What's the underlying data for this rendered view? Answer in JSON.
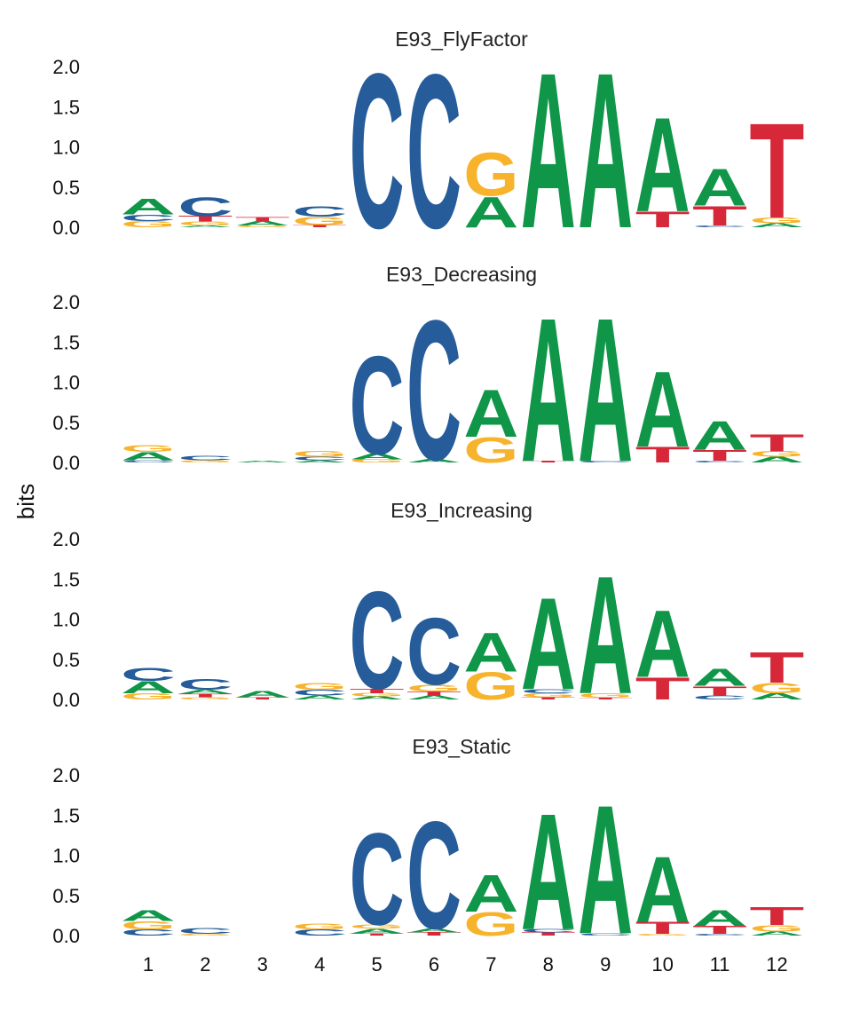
{
  "colors": {
    "A": "#109648",
    "C": "#255C99",
    "G": "#F7B32B",
    "T": "#D62839"
  },
  "chart_data": {
    "type": "sequence-logo",
    "ylabel": "bits",
    "ylim": [
      0,
      2
    ],
    "yticks": [
      "0.0",
      "0.5",
      "1.0",
      "1.5",
      "2.0"
    ],
    "xticks": [
      "1",
      "2",
      "3",
      "4",
      "5",
      "6",
      "7",
      "8",
      "9",
      "10",
      "11",
      "12"
    ],
    "panels": [
      {
        "title": "E93_FlyFactor",
        "positions": [
          [
            {
              "b": "G",
              "h": 0.08
            },
            {
              "b": "C",
              "h": 0.08
            },
            {
              "b": "A",
              "h": 0.2
            }
          ],
          [
            {
              "b": "A",
              "h": 0.02
            },
            {
              "b": "G",
              "h": 0.05
            },
            {
              "b": "T",
              "h": 0.07
            },
            {
              "b": "C",
              "h": 0.24
            }
          ],
          [
            {
              "b": "G",
              "h": 0.02
            },
            {
              "b": "A",
              "h": 0.06
            },
            {
              "b": "T",
              "h": 0.05
            }
          ],
          [
            {
              "b": "T",
              "h": 0.03
            },
            {
              "b": "G",
              "h": 0.1
            },
            {
              "b": "C",
              "h": 0.13
            }
          ],
          [
            {
              "b": "C",
              "h": 1.97
            }
          ],
          [
            {
              "b": "C",
              "h": 1.96
            }
          ],
          [
            {
              "b": "A",
              "h": 0.39
            },
            {
              "b": "G",
              "h": 0.55
            }
          ],
          [
            {
              "b": "A",
              "h": 1.98
            }
          ],
          [
            {
              "b": "A",
              "h": 1.98
            }
          ],
          [
            {
              "b": "T",
              "h": 0.2
            },
            {
              "b": "A",
              "h": 1.2
            }
          ],
          [
            {
              "b": "C",
              "h": 0.02
            },
            {
              "b": "T",
              "h": 0.25
            },
            {
              "b": "A",
              "h": 0.47
            }
          ],
          [
            {
              "b": "A",
              "h": 0.05
            },
            {
              "b": "G",
              "h": 0.07
            },
            {
              "b": "T",
              "h": 1.21
            }
          ]
        ]
      },
      {
        "title": "E93_Decreasing",
        "positions": [
          [
            {
              "b": "C",
              "h": 0.03
            },
            {
              "b": "A",
              "h": 0.1
            },
            {
              "b": "G",
              "h": 0.09
            }
          ],
          [
            {
              "b": "G",
              "h": 0.03
            },
            {
              "b": "C",
              "h": 0.06
            }
          ],
          [
            {
              "b": "A",
              "h": 0.02
            }
          ],
          [
            {
              "b": "A",
              "h": 0.03
            },
            {
              "b": "C",
              "h": 0.04
            },
            {
              "b": "G",
              "h": 0.07
            }
          ],
          [
            {
              "b": "G",
              "h": 0.04
            },
            {
              "b": "A",
              "h": 0.07
            },
            {
              "b": "C",
              "h": 1.25
            }
          ],
          [
            {
              "b": "A",
              "h": 0.04
            },
            {
              "b": "C",
              "h": 1.78
            }
          ],
          [
            {
              "b": "G",
              "h": 0.32
            },
            {
              "b": "A",
              "h": 0.6
            }
          ],
          [
            {
              "b": "T",
              "h": 0.02
            },
            {
              "b": "A",
              "h": 1.83
            }
          ],
          [
            {
              "b": "C",
              "h": 0.02
            },
            {
              "b": "A",
              "h": 1.83
            }
          ],
          [
            {
              "b": "T",
              "h": 0.2
            },
            {
              "b": "A",
              "h": 0.96
            }
          ],
          [
            {
              "b": "C",
              "h": 0.02
            },
            {
              "b": "T",
              "h": 0.14
            },
            {
              "b": "A",
              "h": 0.37
            }
          ],
          [
            {
              "b": "A",
              "h": 0.07
            },
            {
              "b": "G",
              "h": 0.07
            },
            {
              "b": "T",
              "h": 0.22
            }
          ]
        ]
      },
      {
        "title": "E93_Increasing",
        "positions": [
          [
            {
              "b": "G",
              "h": 0.08
            },
            {
              "b": "A",
              "h": 0.15
            },
            {
              "b": "C",
              "h": 0.17
            }
          ],
          [
            {
              "b": "G",
              "h": 0.03
            },
            {
              "b": "T",
              "h": 0.04
            },
            {
              "b": "A",
              "h": 0.05
            },
            {
              "b": "C",
              "h": 0.14
            }
          ],
          [
            {
              "b": "T",
              "h": 0.03
            },
            {
              "b": "A",
              "h": 0.08
            }
          ],
          [
            {
              "b": "A",
              "h": 0.05
            },
            {
              "b": "C",
              "h": 0.07
            },
            {
              "b": "G",
              "h": 0.09
            }
          ],
          [
            {
              "b": "A",
              "h": 0.04
            },
            {
              "b": "G",
              "h": 0.04
            },
            {
              "b": "T",
              "h": 0.06
            },
            {
              "b": "C",
              "h": 1.24
            }
          ],
          [
            {
              "b": "A",
              "h": 0.05
            },
            {
              "b": "T",
              "h": 0.05
            },
            {
              "b": "G",
              "h": 0.09
            },
            {
              "b": "C",
              "h": 0.85
            }
          ],
          [
            {
              "b": "G",
              "h": 0.35
            },
            {
              "b": "A",
              "h": 0.5
            }
          ],
          [
            {
              "b": "T",
              "h": 0.03
            },
            {
              "b": "G",
              "h": 0.05
            },
            {
              "b": "C",
              "h": 0.05
            },
            {
              "b": "A",
              "h": 1.17
            }
          ],
          [
            {
              "b": "T",
              "h": 0.02
            },
            {
              "b": "G",
              "h": 0.06
            },
            {
              "b": "A",
              "h": 1.5
            }
          ],
          [
            {
              "b": "T",
              "h": 0.28
            },
            {
              "b": "A",
              "h": 0.85
            }
          ],
          [
            {
              "b": "C",
              "h": 0.05
            },
            {
              "b": "T",
              "h": 0.12
            },
            {
              "b": "A",
              "h": 0.22
            }
          ],
          [
            {
              "b": "A",
              "h": 0.08
            },
            {
              "b": "G",
              "h": 0.13
            },
            {
              "b": "T",
              "h": 0.39
            }
          ]
        ]
      },
      {
        "title": "E93_Static",
        "positions": [
          [
            {
              "b": "C",
              "h": 0.08
            },
            {
              "b": "G",
              "h": 0.1
            },
            {
              "b": "A",
              "h": 0.14
            }
          ],
          [
            {
              "b": "G",
              "h": 0.02
            },
            {
              "b": "C",
              "h": 0.07
            }
          ],
          [],
          [
            {
              "b": "C",
              "h": 0.08
            },
            {
              "b": "G",
              "h": 0.07
            }
          ],
          [
            {
              "b": "T",
              "h": 0.03
            },
            {
              "b": "A",
              "h": 0.06
            },
            {
              "b": "G",
              "h": 0.05
            },
            {
              "b": "C",
              "h": 1.17
            }
          ],
          [
            {
              "b": "T",
              "h": 0.04
            },
            {
              "b": "A",
              "h": 0.05
            },
            {
              "b": "C",
              "h": 1.37
            }
          ],
          [
            {
              "b": "G",
              "h": 0.3
            },
            {
              "b": "A",
              "h": 0.47
            }
          ],
          [
            {
              "b": "T",
              "h": 0.04
            },
            {
              "b": "C",
              "h": 0.04
            },
            {
              "b": "A",
              "h": 1.48
            }
          ],
          [
            {
              "b": "C",
              "h": 0.03
            },
            {
              "b": "A",
              "h": 1.64
            }
          ],
          [
            {
              "b": "G",
              "h": 0.02
            },
            {
              "b": "T",
              "h": 0.15
            },
            {
              "b": "A",
              "h": 0.84
            }
          ],
          [
            {
              "b": "C",
              "h": 0.02
            },
            {
              "b": "T",
              "h": 0.1
            },
            {
              "b": "A",
              "h": 0.2
            }
          ],
          [
            {
              "b": "A",
              "h": 0.05
            },
            {
              "b": "G",
              "h": 0.08
            },
            {
              "b": "T",
              "h": 0.23
            }
          ]
        ]
      }
    ]
  }
}
